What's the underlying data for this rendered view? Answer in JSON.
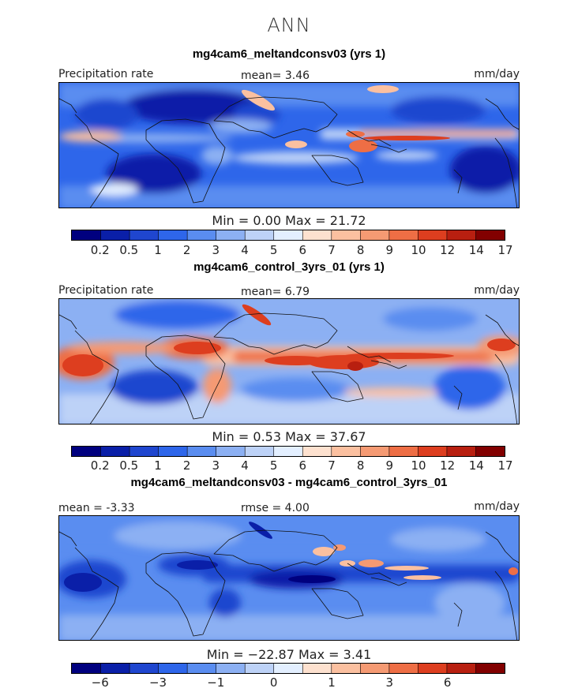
{
  "figure": {
    "season": "ANN"
  },
  "panels": [
    {
      "title": "mg4cam6_meltandconsv03 (yrs 1)",
      "left_label": "Precipitation rate",
      "center_label": "mean=   3.46",
      "right_label": "mm/day",
      "minmax": "Min =    0.00  Max =   21.72"
    },
    {
      "title": "mg4cam6_control_3yrs_01 (yrs 1)",
      "left_label": "Precipitation rate",
      "center_label": "mean=   6.79",
      "right_label": "mm/day",
      "minmax": "Min =    0.53  Max =   37.67"
    },
    {
      "title": "mg4cam6_meltandconsv03 - mg4cam6_control_3yrs_01",
      "left_label": "mean =   -3.33",
      "center_label": "rmse =    4.00",
      "right_label": "mm/day",
      "minmax": "Min = −22.87  Max =    3.41"
    }
  ],
  "chart_data": [
    {
      "type": "heatmap",
      "title": "mg4cam6_meltandconsv03 (yrs 1)",
      "variable": "Precipitation rate",
      "units": "mm/day",
      "mean": 3.46,
      "min": 0.0,
      "max": 21.72,
      "colorbar_levels": [
        "0.2",
        "0.5",
        "1",
        "2",
        "3",
        "4",
        "5",
        "6",
        "7",
        "8",
        "9",
        "10",
        "12",
        "14",
        "17"
      ],
      "colorbar_colors": [
        "#00007f",
        "#0a1fa8",
        "#1f46cf",
        "#2e66ea",
        "#5a8df0",
        "#8cb0f3",
        "#bdd2f7",
        "#e3efff",
        "#fde1cf",
        "#fbc0a0",
        "#f59a73",
        "#ee6e45",
        "#dd3e1f",
        "#b81f10",
        "#820000"
      ]
    },
    {
      "type": "heatmap",
      "title": "mg4cam6_control_3yrs_01 (yrs 1)",
      "variable": "Precipitation rate",
      "units": "mm/day",
      "mean": 6.79,
      "min": 0.53,
      "max": 37.67,
      "colorbar_levels": [
        "0.2",
        "0.5",
        "1",
        "2",
        "3",
        "4",
        "5",
        "6",
        "7",
        "8",
        "9",
        "10",
        "12",
        "14",
        "17"
      ],
      "colorbar_colors": [
        "#00007f",
        "#0a1fa8",
        "#1f46cf",
        "#2e66ea",
        "#5a8df0",
        "#8cb0f3",
        "#bdd2f7",
        "#e3efff",
        "#fde1cf",
        "#fbc0a0",
        "#f59a73",
        "#ee6e45",
        "#dd3e1f",
        "#b81f10",
        "#820000"
      ]
    },
    {
      "type": "heatmap",
      "title": "mg4cam6_meltandconsv03 - mg4cam6_control_3yrs_01",
      "units": "mm/day",
      "mean": -3.33,
      "rmse": 4.0,
      "min": -22.87,
      "max": 3.41,
      "colorbar_levels": [
        "−6",
        "−3",
        "−1",
        "0",
        "1",
        "3",
        "6"
      ],
      "colorbar_colors": [
        "#00007f",
        "#0a1fa8",
        "#1f46cf",
        "#2e66ea",
        "#5a8df0",
        "#8cb0f3",
        "#bdd2f7",
        "#e3efff",
        "#fde1cf",
        "#fbc0a0",
        "#f59a73",
        "#ee6e45",
        "#dd3e1f",
        "#b81f10",
        "#820000"
      ]
    }
  ]
}
